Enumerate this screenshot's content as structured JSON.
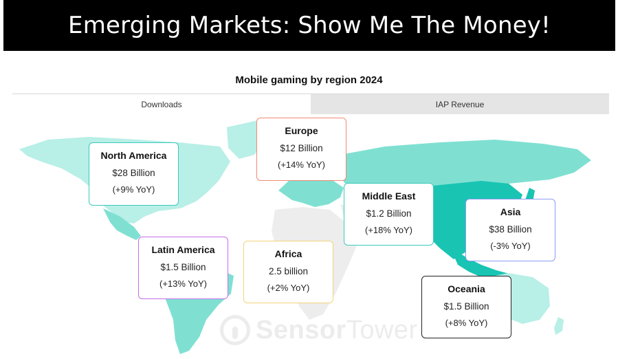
{
  "header": {
    "title": "Emerging Markets: Show Me The Money!"
  },
  "chart_title": "Mobile gaming by region 2024",
  "tabs": [
    {
      "label": "Downloads",
      "active": true
    },
    {
      "label": "IAP Revenue",
      "active": false
    }
  ],
  "regions": [
    {
      "name": "North America",
      "value": "$28 Billion",
      "growth": "(+9% YoY)",
      "border_color": "#3cc9bb"
    },
    {
      "name": "Europe",
      "value": "$12 Billion",
      "growth": "(+14% YoY)",
      "border_color": "#f08a72"
    },
    {
      "name": "Middle East",
      "value": "$1.2 Billion",
      "growth": "(+18% YoY)",
      "border_color": "#3cc9bb"
    },
    {
      "name": "Asia",
      "value": "$38 Billion",
      "growth": "(-3% YoY)",
      "border_color": "#8c9cf0"
    },
    {
      "name": "Latin America",
      "value": "$1.5 Billion",
      "growth": "(+13% YoY)",
      "border_color": "#c46de8"
    },
    {
      "name": "Africa",
      "value": "2.5 billion",
      "growth": "(+2% YoY)",
      "border_color": "#f2d37a"
    },
    {
      "name": "Oceania",
      "value": "$1.5 Billion",
      "growth": "(+8% YoY)",
      "border_color": "#222222"
    }
  ],
  "watermark": {
    "brand_a": "Sensor",
    "brand_b": "Tower"
  },
  "colors": {
    "light_teal": "#b8efe7",
    "mid_teal": "#7fe0d2",
    "dark_teal": "#19c4b3",
    "gray_land": "#ededed"
  }
}
